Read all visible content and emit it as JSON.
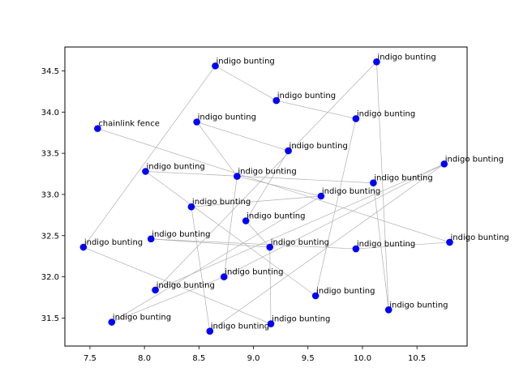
{
  "chart_data": {
    "type": "scatter",
    "title": "",
    "xlabel": "",
    "ylabel": "",
    "xlim": [
      7.27,
      10.96
    ],
    "ylim": [
      31.16,
      34.79
    ],
    "xticks": [
      "7.5",
      "8.0",
      "8.5",
      "9.0",
      "9.5",
      "10.0",
      "10.5"
    ],
    "yticks": [
      "31.5",
      "32.0",
      "32.5",
      "33.0",
      "33.5",
      "34.0",
      "34.5"
    ],
    "point_color": "#0000ff",
    "edge_color": "#b0b0b0",
    "points": [
      {
        "x": 7.44,
        "y": 32.36,
        "label": "indigo bunting"
      },
      {
        "x": 7.57,
        "y": 33.8,
        "label": "chainlink fence"
      },
      {
        "x": 7.7,
        "y": 31.45,
        "label": "indigo bunting"
      },
      {
        "x": 8.01,
        "y": 33.28,
        "label": "indigo bunting"
      },
      {
        "x": 8.06,
        "y": 32.46,
        "label": "indigo bunting"
      },
      {
        "x": 8.1,
        "y": 31.84,
        "label": "indigo bunting"
      },
      {
        "x": 8.43,
        "y": 32.85,
        "label": "indigo bunting"
      },
      {
        "x": 8.48,
        "y": 33.88,
        "label": "indigo bunting"
      },
      {
        "x": 8.6,
        "y": 31.34,
        "label": "indigo bunting"
      },
      {
        "x": 8.65,
        "y": 34.56,
        "label": "indigo bunting"
      },
      {
        "x": 8.73,
        "y": 32.0,
        "label": "indigo bunting"
      },
      {
        "x": 8.85,
        "y": 33.22,
        "label": "indigo bunting"
      },
      {
        "x": 8.93,
        "y": 32.68,
        "label": "indigo bunting"
      },
      {
        "x": 9.15,
        "y": 32.36,
        "label": "indigo bunting"
      },
      {
        "x": 9.16,
        "y": 31.43,
        "label": "indigo bunting"
      },
      {
        "x": 9.21,
        "y": 34.14,
        "label": "indigo bunting"
      },
      {
        "x": 9.32,
        "y": 33.53,
        "label": "indigo bunting"
      },
      {
        "x": 9.57,
        "y": 31.77,
        "label": "indigo bunting"
      },
      {
        "x": 9.62,
        "y": 32.98,
        "label": "indigo bunting"
      },
      {
        "x": 9.94,
        "y": 32.34,
        "label": "indigo bunting"
      },
      {
        "x": 9.94,
        "y": 33.92,
        "label": "indigo bunting"
      },
      {
        "x": 10.1,
        "y": 33.14,
        "label": "indigo bunting"
      },
      {
        "x": 10.13,
        "y": 34.61,
        "label": "indigo bunting"
      },
      {
        "x": 10.24,
        "y": 31.6,
        "label": "indigo bunting"
      },
      {
        "x": 10.75,
        "y": 33.37,
        "label": "indigo bunting"
      },
      {
        "x": 10.8,
        "y": 32.42,
        "label": "indigo bunting"
      }
    ],
    "edges": [
      [
        9,
        0
      ],
      [
        9,
        15
      ],
      [
        15,
        20
      ],
      [
        20,
        17
      ],
      [
        17,
        3
      ],
      [
        3,
        21
      ],
      [
        21,
        23
      ],
      [
        23,
        22
      ],
      [
        22,
        5
      ],
      [
        5,
        24
      ],
      [
        24,
        8
      ],
      [
        8,
        6
      ],
      [
        6,
        18
      ],
      [
        18,
        2
      ],
      [
        2,
        10
      ],
      [
        10,
        11
      ],
      [
        11,
        7
      ],
      [
        4,
        19
      ],
      [
        19,
        25
      ],
      [
        25,
        1
      ],
      [
        0,
        14
      ],
      [
        14,
        13
      ],
      [
        13,
        12
      ],
      [
        12,
        16
      ],
      [
        16,
        7
      ],
      [
        11,
        18
      ],
      [
        24,
        10
      ],
      [
        4,
        13
      ]
    ]
  }
}
